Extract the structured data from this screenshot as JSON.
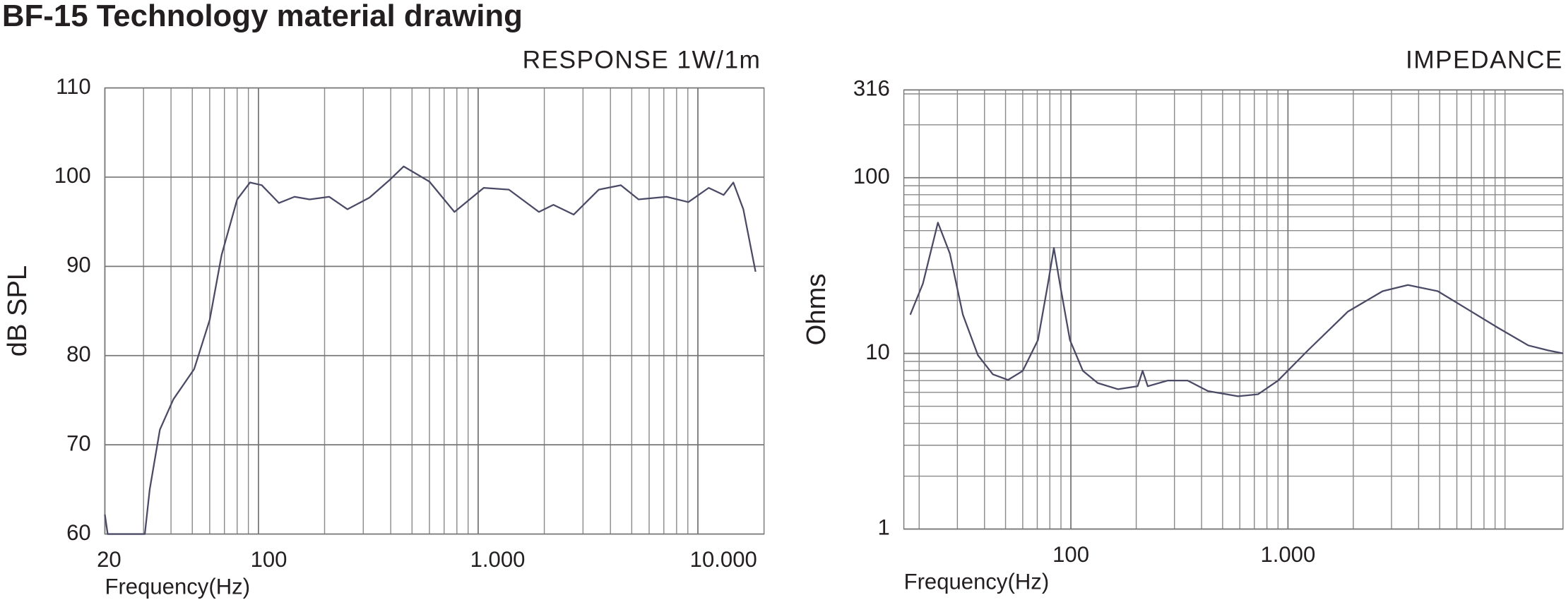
{
  "title": "BF-15 Technology material drawing",
  "chart_data": [
    {
      "type": "line",
      "title": "RESPONSE 1W/1m",
      "x_label": "Frequency(Hz)",
      "y_label": "dB SPL",
      "x_scale": "log",
      "y_scale": "linear",
      "grid": true,
      "color": "#4a4a66",
      "xlim": [
        20,
        20000
      ],
      "ylim": [
        60,
        110
      ],
      "xticks": [
        20,
        100,
        {
          "value": 1000,
          "label": "1.000"
        },
        {
          "value": 10000,
          "label": "10.000"
        }
      ],
      "yticks": [
        60,
        70,
        80,
        90,
        100,
        110
      ],
      "x": [
        20,
        20.6,
        30.4,
        32,
        35.6,
        41,
        51,
        60,
        68,
        80,
        91.5,
        103.5,
        124,
        146,
        171,
        210,
        254,
        320,
        396,
        458,
        600,
        780,
        1060,
        1380,
        1890,
        2200,
        2720,
        3540,
        4460,
        5370,
        7200,
        9050,
        11200,
        13100,
        14500,
        16100,
        18300
      ],
      "values": [
        62.2,
        60,
        60,
        65,
        71.7,
        75.1,
        78.5,
        84,
        91.3,
        97.5,
        99.4,
        99.1,
        97.1,
        97.8,
        97.5,
        97.8,
        96.4,
        97.7,
        99.7,
        101.2,
        99.5,
        96.1,
        98.8,
        98.6,
        96.1,
        96.9,
        95.8,
        98.6,
        99.1,
        97.5,
        97.8,
        97.2,
        98.8,
        98,
        99.4,
        96.4,
        89.4
      ]
    },
    {
      "type": "line",
      "title": "IMPEDANCE",
      "x_label": "Frequency(Hz)",
      "y_label": "Ohms",
      "x_scale": "log",
      "y_scale": "log",
      "grid": true,
      "color": "#4a4a66",
      "xlim": [
        17,
        18500
      ],
      "ylim": [
        1,
        316
      ],
      "xticks": [
        100,
        {
          "value": 1000,
          "label": "1.000"
        }
      ],
      "yticks": [
        1,
        10,
        100,
        316
      ],
      "x": [
        18.2,
        20.8,
        24.4,
        27.7,
        31.8,
        37.3,
        43.7,
        51.3,
        60,
        70.5,
        78.4,
        83.5,
        89,
        99,
        113.6,
        133,
        165,
        203,
        214,
        226,
        279,
        345,
        428,
        589,
        728,
        900,
        1236,
        1890,
        2730,
        3570,
        4900,
        6740,
        9270,
        12800,
        15800,
        18500
      ],
      "values": [
        16.6,
        24.9,
        55.5,
        37,
        16.6,
        9.76,
        7.6,
        7.06,
        7.95,
        11.9,
        24.9,
        39.8,
        24.9,
        11.9,
        7.95,
        6.78,
        6.25,
        6.5,
        7.96,
        6.5,
        7.0,
        7.0,
        6.1,
        5.7,
        5.85,
        7.0,
        10.4,
        17.3,
        22.6,
        24.5,
        22.6,
        17.8,
        14.0,
        11.1,
        10.4,
        10.0
      ]
    }
  ]
}
